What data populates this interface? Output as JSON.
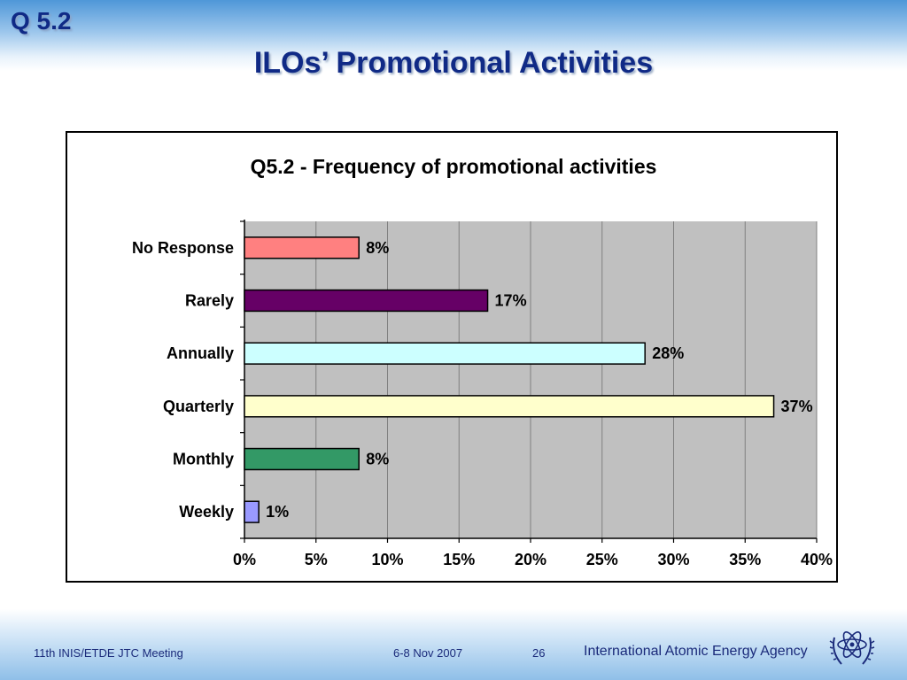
{
  "slide": {
    "number_label": "Q 5.2",
    "title": "ILOs’ Promotional Activities"
  },
  "footer": {
    "meeting": "11th INIS/ETDE JTC Meeting",
    "date": "6-8 Nov 2007",
    "page": "26",
    "agency": "International Atomic Energy Agency"
  },
  "chart_data": {
    "type": "bar",
    "orientation": "horizontal",
    "title": "Q5.2 - Frequency of promotional activities",
    "categories": [
      "No Response",
      "Rarely",
      "Annually",
      "Quarterly",
      "Monthly",
      "Weekly"
    ],
    "values": [
      8,
      17,
      28,
      37,
      8,
      1
    ],
    "value_labels": [
      "8%",
      "17%",
      "28%",
      "37%",
      "8%",
      "1%"
    ],
    "bar_colors": [
      "#ff8080",
      "#660066",
      "#ccffff",
      "#ffffcc",
      "#339966",
      "#9999ff"
    ],
    "xlim": [
      0,
      40
    ],
    "xticks": [
      "0%",
      "5%",
      "10%",
      "15%",
      "20%",
      "25%",
      "30%",
      "35%",
      "40%"
    ],
    "plot_background": "#c0c0c0",
    "grid": true,
    "legend": "none"
  }
}
